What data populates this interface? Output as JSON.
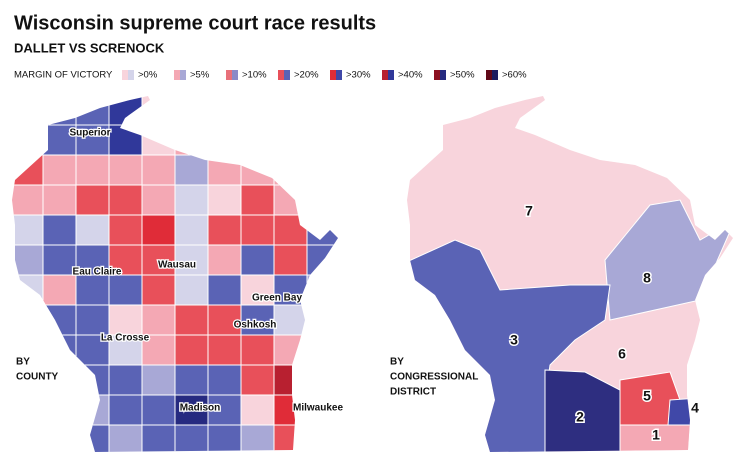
{
  "header": {
    "title": "Wisconsin supreme court race results",
    "subtitle": "DALLET VS SCRENOCK"
  },
  "legend": {
    "title": "MARGIN OF VICTORY",
    "items": [
      {
        "label": ">0%",
        "red": "#f8d4dc",
        "blue": "#d4d4ea"
      },
      {
        "label": ">5%",
        "red": "#f4a8b4",
        "blue": "#a8a8d6"
      },
      {
        "label": ">10%",
        "red": "#e8707a",
        "blue": "#8a8ac8"
      },
      {
        "label": ">20%",
        "red": "#e8505a",
        "blue": "#5a63b5"
      },
      {
        "label": ">30%",
        "red": "#e02c38",
        "blue": "#4048a8"
      },
      {
        "label": ">40%",
        "red": "#b82030",
        "blue": "#30389a"
      },
      {
        "label": ">50%",
        "red": "#8c1020",
        "blue": "#262a80"
      },
      {
        "label": ">60%",
        "red": "#600818",
        "blue": "#1c1c60"
      }
    ]
  },
  "county_map": {
    "label": [
      "BY",
      "COUNTY"
    ],
    "cities": [
      "Superior",
      "Eau Claire",
      "Wausau",
      "Green Bay",
      "Oshkosh",
      "La Crosse",
      "Madison",
      "Milwaukee"
    ]
  },
  "district_map": {
    "label": [
      "BY",
      "CONGRESSIONAL",
      "DISTRICT"
    ],
    "districts": [
      "7",
      "8",
      "3",
      "6",
      "5",
      "2",
      "4",
      "1"
    ]
  }
}
